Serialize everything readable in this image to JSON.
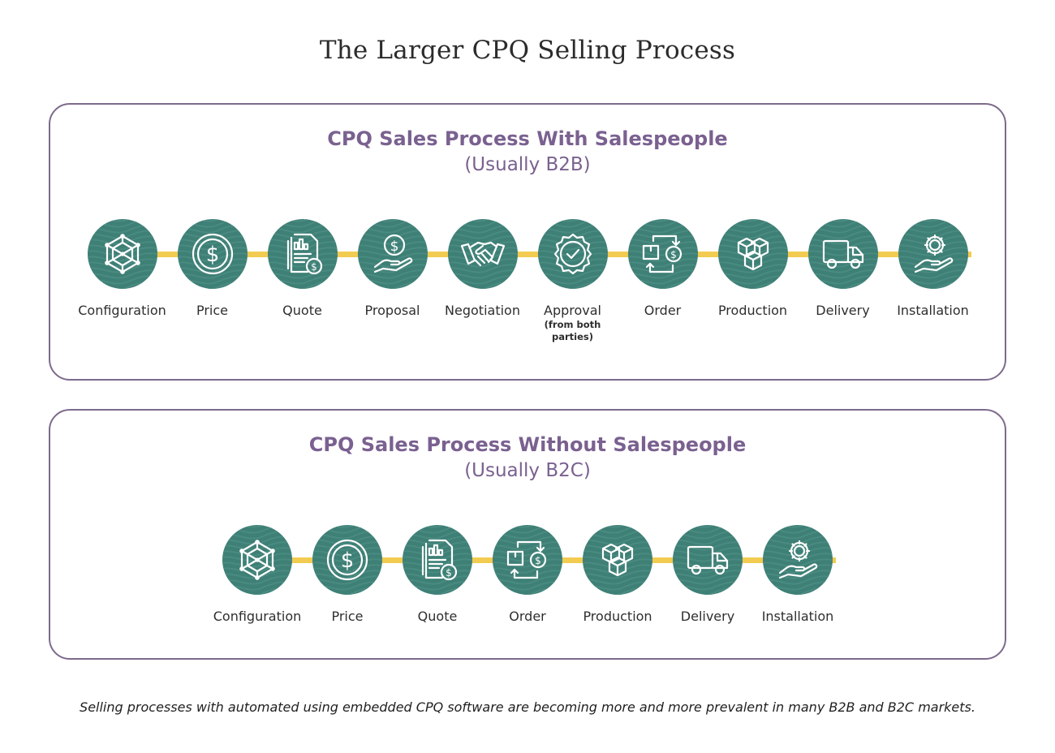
{
  "title": "The Larger CPQ Selling Process",
  "panels": [
    {
      "title": "CPQ Sales Process With Salespeople",
      "subtitle": "(Usually B2B)",
      "steps": [
        {
          "label": "Configuration",
          "icon": "network-cube-icon"
        },
        {
          "label": "Price",
          "icon": "dollar-coin-icon"
        },
        {
          "label": "Quote",
          "icon": "quote-document-icon"
        },
        {
          "label": "Proposal",
          "icon": "hand-coin-icon"
        },
        {
          "label": "Negotiation",
          "icon": "handshake-icon"
        },
        {
          "label": "Approval",
          "sub": "(from both parties)",
          "icon": "approval-badge-icon"
        },
        {
          "label": "Order",
          "icon": "order-exchange-icon"
        },
        {
          "label": "Production",
          "icon": "boxes-icon"
        },
        {
          "label": "Delivery",
          "icon": "delivery-truck-icon"
        },
        {
          "label": "Installation",
          "icon": "hand-gear-icon"
        }
      ]
    },
    {
      "title": "CPQ Sales Process Without Salespeople",
      "subtitle": "(Usually B2C)",
      "steps": [
        {
          "label": "Configuration",
          "icon": "network-cube-icon"
        },
        {
          "label": "Price",
          "icon": "dollar-coin-icon"
        },
        {
          "label": "Quote",
          "icon": "quote-document-icon"
        },
        {
          "label": "Order",
          "icon": "order-exchange-icon"
        },
        {
          "label": "Production",
          "icon": "boxes-icon"
        },
        {
          "label": "Delivery",
          "icon": "delivery-truck-icon"
        },
        {
          "label": "Installation",
          "icon": "hand-gear-icon"
        }
      ]
    }
  ],
  "caption": "Selling processes with automated using embedded CPQ software are becoming more and more prevalent in many B2B and B2C markets.",
  "colors": {
    "accent_purple": "#7a6190",
    "panel_border": "#7d6a8c",
    "circle_teal": "#3e7f76",
    "connector_yellow": "#f2cb51"
  }
}
